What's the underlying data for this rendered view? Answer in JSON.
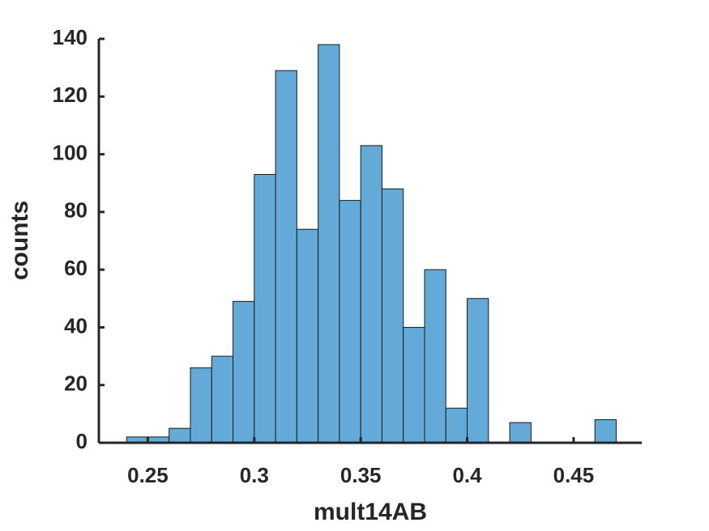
{
  "chart_data": {
    "type": "histogram",
    "xlabel": "mult14AB",
    "ylabel": "counts",
    "bins": [
      0.24,
      0.25,
      0.26,
      0.27,
      0.28,
      0.29,
      0.3,
      0.31,
      0.32,
      0.33,
      0.34,
      0.35,
      0.36,
      0.37,
      0.38,
      0.39,
      0.4,
      0.41,
      0.42,
      0.43,
      0.44,
      0.45,
      0.46,
      0.47
    ],
    "values": [
      2,
      2,
      5,
      26,
      30,
      49,
      93,
      129,
      74,
      138,
      84,
      103,
      88,
      40,
      60,
      12,
      50,
      0,
      7,
      0,
      0,
      0,
      8
    ],
    "color": "#64aad8",
    "xlim": [
      0.227,
      0.482
    ],
    "xticks": [
      0.25,
      0.3,
      0.35,
      0.4,
      0.45
    ],
    "ylim": [
      0,
      140
    ],
    "yticks": [
      0,
      20,
      40,
      60,
      80,
      100,
      120,
      140
    ]
  }
}
